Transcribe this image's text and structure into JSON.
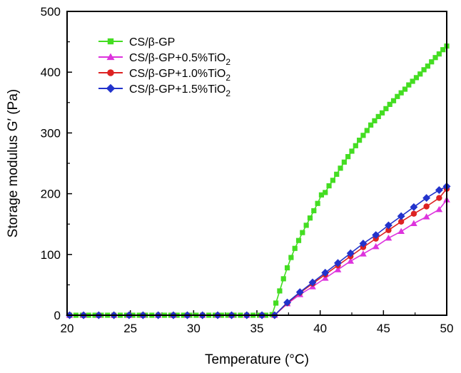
{
  "chart_data": {
    "type": "line",
    "xlabel": "Temperature (°C)",
    "ylabel": "Storage modulus G′ (Pa)",
    "xlim": [
      20,
      50
    ],
    "ylim": [
      0,
      500
    ],
    "xticks": [
      20,
      25,
      30,
      35,
      40,
      45,
      50
    ],
    "yticks": [
      0,
      100,
      200,
      300,
      400,
      500
    ],
    "legend_position": "top-left",
    "series": [
      {
        "name": "CS/β-GP",
        "label_main": "CS/β-GP",
        "label_sub": "",
        "color": "#44dd22",
        "marker": "square",
        "x": [
          20.2,
          20.7,
          21.2,
          21.7,
          22.2,
          22.7,
          23.2,
          23.7,
          24.2,
          24.7,
          25.2,
          25.7,
          26.2,
          26.7,
          27.2,
          27.7,
          28.2,
          28.7,
          29.2,
          29.7,
          30.2,
          30.7,
          31.2,
          31.7,
          32.2,
          32.7,
          33.2,
          33.7,
          34.2,
          34.7,
          35.2,
          35.7,
          36.2,
          36.5,
          36.8,
          37.1,
          37.4,
          37.7,
          38.0,
          38.3,
          38.6,
          38.9,
          39.2,
          39.5,
          39.8,
          40.1,
          40.4,
          40.7,
          41.0,
          41.3,
          41.6,
          41.9,
          42.2,
          42.5,
          42.8,
          43.1,
          43.4,
          43.7,
          44.0,
          44.3,
          44.6,
          44.9,
          45.2,
          45.5,
          45.8,
          46.1,
          46.4,
          46.7,
          47.0,
          47.3,
          47.6,
          47.9,
          48.2,
          48.5,
          48.8,
          49.1,
          49.4,
          49.7,
          50.0
        ],
        "y": [
          0,
          0,
          0,
          0,
          0,
          0,
          0,
          0,
          0,
          0,
          0,
          0,
          0,
          0,
          0,
          0,
          0,
          0,
          0,
          0,
          0,
          0,
          0,
          0,
          0,
          0,
          0,
          0,
          0,
          0,
          0,
          0,
          1,
          20,
          40,
          60,
          78,
          95,
          110,
          123,
          136,
          148,
          160,
          172,
          184,
          198,
          202,
          213,
          222,
          232,
          242,
          252,
          261,
          270,
          279,
          288,
          296,
          304,
          313,
          320,
          327,
          333,
          340,
          347,
          353,
          360,
          366,
          372,
          379,
          385,
          391,
          397,
          404,
          410,
          417,
          424,
          430,
          437,
          443
        ]
      },
      {
        "name": "CS/β-GP+0.5%TiO2",
        "label_main": "CS/β-GP+0.5%TiO",
        "label_sub": "2",
        "color": "#dd33dd",
        "marker": "triangle",
        "x": [
          20.2,
          21.3,
          22.5,
          23.7,
          24.9,
          26.0,
          27.2,
          28.4,
          29.5,
          30.7,
          31.9,
          33.0,
          34.2,
          35.4,
          36.4,
          37.4,
          38.4,
          39.4,
          40.4,
          41.4,
          42.4,
          43.4,
          44.4,
          45.4,
          46.4,
          47.4,
          48.4,
          49.4,
          50.0
        ],
        "y": [
          0,
          0,
          0,
          0,
          0,
          0,
          0,
          0,
          0,
          0,
          0,
          0,
          0,
          0,
          0,
          19,
          34,
          47,
          61,
          75,
          89,
          101,
          113,
          127,
          138,
          151,
          162,
          174,
          190
        ]
      },
      {
        "name": "CS/β-GP+1.0%TiO2",
        "label_main": "CS/β-GP+1.0%TiO",
        "label_sub": "2",
        "color": "#dd2222",
        "marker": "circle",
        "x": [
          20.2,
          21.3,
          22.5,
          23.7,
          24.9,
          26.0,
          27.2,
          28.4,
          29.5,
          30.7,
          31.9,
          33.0,
          34.2,
          35.4,
          36.4,
          37.4,
          38.4,
          39.4,
          40.4,
          41.4,
          42.4,
          43.4,
          44.4,
          45.4,
          46.4,
          47.4,
          48.4,
          49.4,
          50.0
        ],
        "y": [
          0,
          0,
          0,
          0,
          0,
          0,
          0,
          0,
          0,
          0,
          0,
          0,
          0,
          0,
          0,
          20,
          37,
          52,
          67,
          82,
          97,
          112,
          126,
          140,
          154,
          167,
          179,
          193,
          208
        ]
      },
      {
        "name": "CS/β-GP+1.5%TiO2",
        "label_main": "CS/β-GP+1.5%TiO",
        "label_sub": "2",
        "color": "#2233cc",
        "marker": "diamond",
        "x": [
          20.2,
          21.3,
          22.5,
          23.7,
          24.9,
          26.0,
          27.2,
          28.4,
          29.5,
          30.7,
          31.9,
          33.0,
          34.2,
          35.4,
          36.4,
          37.4,
          38.4,
          39.4,
          40.4,
          41.4,
          42.4,
          43.4,
          44.4,
          45.4,
          46.4,
          47.4,
          48.4,
          49.4,
          50.0
        ],
        "y": [
          0,
          0,
          0,
          0,
          0,
          0,
          0,
          0,
          0,
          0,
          0,
          0,
          0,
          0,
          0,
          21,
          38,
          54,
          70,
          86,
          102,
          118,
          132,
          148,
          163,
          178,
          193,
          206,
          212
        ]
      }
    ]
  }
}
